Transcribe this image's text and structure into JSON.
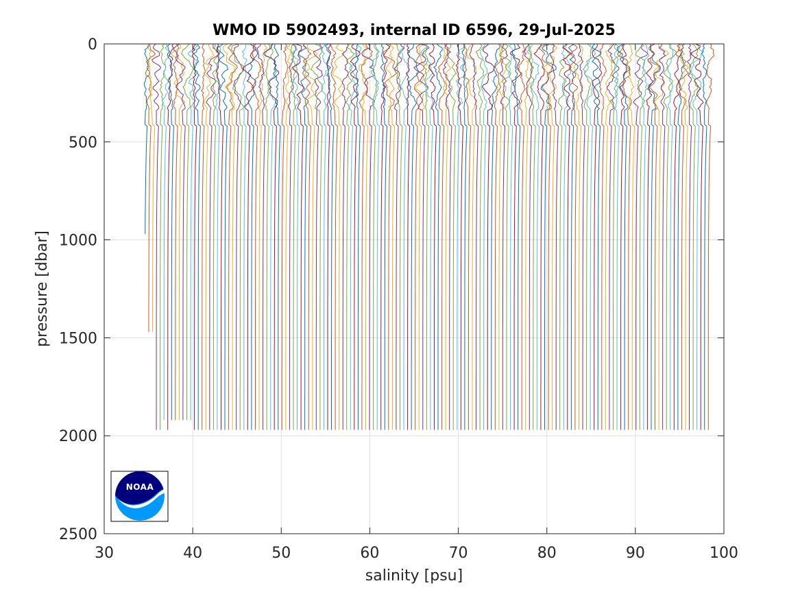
{
  "chart_data": {
    "type": "line",
    "title": "WMO ID 5902493, internal ID 6596, 29-Jul-2025",
    "xlabel": "salinity [psu]",
    "ylabel": "pressure [dbar]",
    "xlim": [
      30,
      100
    ],
    "ylim": [
      0,
      2500
    ],
    "y_reversed": true,
    "grid": true,
    "x_ticks": [
      "30",
      "40",
      "50",
      "60",
      "70",
      "80",
      "90",
      "100"
    ],
    "y_ticks": [
      "0",
      "500",
      "1000",
      "1500",
      "2000",
      "2500"
    ],
    "profile_count": 149,
    "first_profile_salinity_offset": 34.6,
    "profile_salinity_step": 0.43,
    "max_profile_pressure": 2000,
    "series_colors": [
      "#0072bd",
      "#d95319",
      "#edb120",
      "#7e2f8e",
      "#77ac30",
      "#4dbeee",
      "#a2142f"
    ],
    "logo": {
      "name": "noaa-logo",
      "text": "NOAA",
      "colors": {
        "dark": "#00007f",
        "light": "#0099ff"
      }
    }
  }
}
